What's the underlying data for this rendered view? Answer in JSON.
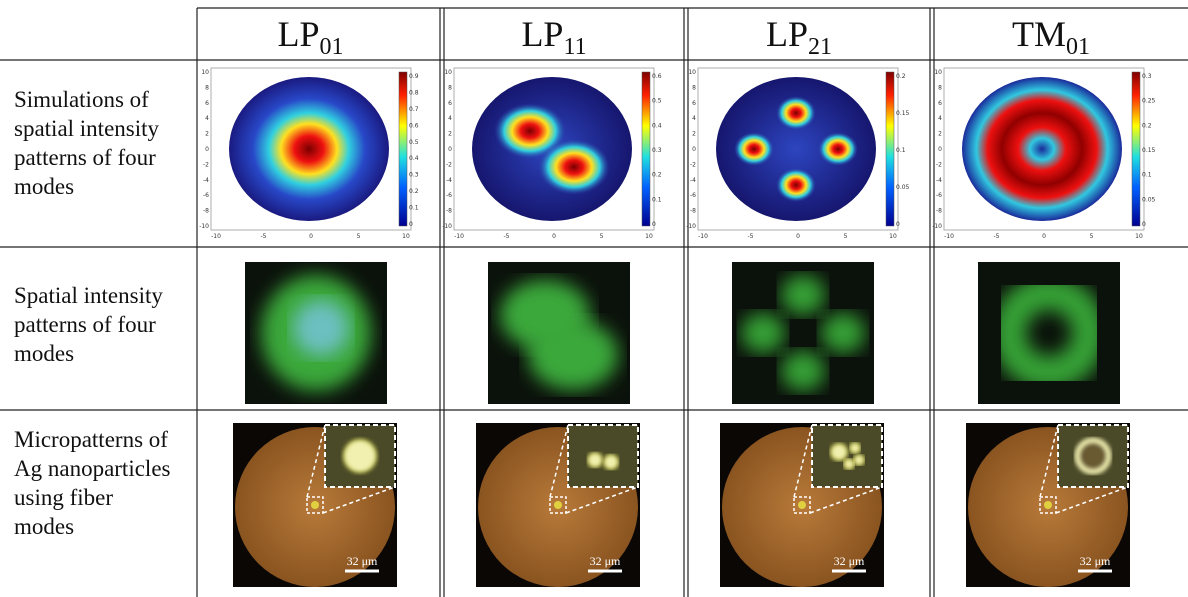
{
  "header": {
    "columns": [
      {
        "name": "LP",
        "sub": "01"
      },
      {
        "name": "LP",
        "sub": "11"
      },
      {
        "name": "LP",
        "sub": "21"
      },
      {
        "name": "TM",
        "sub": "01"
      }
    ]
  },
  "rows": [
    {
      "label": [
        "Simulations of",
        "spatial intensity",
        "patterns of four",
        "modes"
      ]
    },
    {
      "label": [
        "Spatial intensity",
        "patterns of four",
        "modes"
      ]
    },
    {
      "label": [
        "Micropatterns of",
        "Ag nanoparticles",
        "using fiber",
        "modes"
      ]
    }
  ],
  "simulations": {
    "xticks": [
      -10,
      -5,
      0,
      5,
      10
    ],
    "yticks": [
      10,
      8,
      6,
      4,
      2,
      0,
      -2,
      -4,
      -6,
      -8,
      -10
    ],
    "colorbars": [
      [
        0.9,
        0.8,
        0.7,
        0.6,
        0.5,
        0.4,
        0.3,
        0.2,
        0.1,
        0
      ],
      [
        0.6,
        0.5,
        0.4,
        0.3,
        0.2,
        0.1,
        0
      ],
      [
        0.2,
        0.15,
        0.1,
        0.05,
        0
      ],
      [
        0.3,
        0.25,
        0.2,
        0.15,
        0.1,
        0.05,
        0
      ]
    ]
  },
  "scale_bar": "32 μm"
}
